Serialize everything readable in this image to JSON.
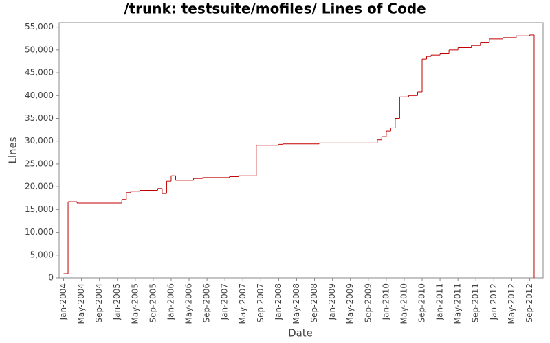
{
  "chart_data": {
    "type": "line",
    "step": true,
    "title": "/trunk: testsuite/mofiles/ Lines of Code",
    "x_label": "Date",
    "y_label": "Lines",
    "color": "#c00000",
    "grid": false,
    "x": [
      "2004-01",
      "2004-02",
      "2004-04",
      "2005-02",
      "2005-03",
      "2005-04",
      "2005-06",
      "2005-10",
      "2005-11",
      "2005-12",
      "2006-01",
      "2006-02",
      "2006-06",
      "2006-08",
      "2007-02",
      "2007-04",
      "2007-08",
      "2008-01",
      "2008-02",
      "2008-10",
      "2009-11",
      "2009-12",
      "2010-01",
      "2010-02",
      "2010-03",
      "2010-04",
      "2010-06",
      "2010-08",
      "2010-09",
      "2010-10",
      "2010-11",
      "2011-01",
      "2011-03",
      "2011-05",
      "2011-08",
      "2011-10",
      "2011-12",
      "2012-03",
      "2012-06",
      "2012-09",
      "2012-10"
    ],
    "values": [
      900,
      16700,
      16400,
      17200,
      18700,
      19000,
      19200,
      19600,
      18500,
      21200,
      22400,
      21400,
      21800,
      22000,
      22200,
      22400,
      29100,
      29300,
      29400,
      29600,
      30300,
      31000,
      32200,
      32900,
      35000,
      39700,
      40000,
      40800,
      48000,
      48600,
      48900,
      49300,
      50000,
      50500,
      51000,
      51700,
      52400,
      52700,
      53100,
      53300,
      0
    ],
    "xlim": [
      "2003-12",
      "2012-12"
    ],
    "xticks": [
      {
        "value": "2004-01",
        "label": "Jan-2004"
      },
      {
        "value": "2004-05",
        "label": "May-2004"
      },
      {
        "value": "2004-09",
        "label": "Sep-2004"
      },
      {
        "value": "2005-01",
        "label": "Jan-2005"
      },
      {
        "value": "2005-05",
        "label": "May-2005"
      },
      {
        "value": "2005-09",
        "label": "Sep-2005"
      },
      {
        "value": "2006-01",
        "label": "Jan-2006"
      },
      {
        "value": "2006-05",
        "label": "May-2006"
      },
      {
        "value": "2006-09",
        "label": "Sep-2006"
      },
      {
        "value": "2007-01",
        "label": "Jan-2007"
      },
      {
        "value": "2007-05",
        "label": "May-2007"
      },
      {
        "value": "2007-09",
        "label": "Sep-2007"
      },
      {
        "value": "2008-01",
        "label": "Jan-2008"
      },
      {
        "value": "2008-05",
        "label": "May-2008"
      },
      {
        "value": "2008-09",
        "label": "Sep-2008"
      },
      {
        "value": "2009-01",
        "label": "Jan-2009"
      },
      {
        "value": "2009-05",
        "label": "May-2009"
      },
      {
        "value": "2009-09",
        "label": "Sep-2009"
      },
      {
        "value": "2010-01",
        "label": "Jan-2010"
      },
      {
        "value": "2010-05",
        "label": "May-2010"
      },
      {
        "value": "2010-09",
        "label": "Sep-2010"
      },
      {
        "value": "2011-01",
        "label": "Jan-2011"
      },
      {
        "value": "2011-05",
        "label": "May-2011"
      },
      {
        "value": "2011-09",
        "label": "Sep-2011"
      },
      {
        "value": "2012-01",
        "label": "Jan-2012"
      },
      {
        "value": "2012-05",
        "label": "May-2012"
      },
      {
        "value": "2012-09",
        "label": "Sep-2012"
      }
    ],
    "ylim": [
      0,
      56000
    ],
    "yticks": [
      0,
      {
        "value": 5000,
        "label": "5,000"
      },
      {
        "value": 10000,
        "label": "10,000"
      },
      {
        "value": 15000,
        "label": "15,000"
      },
      {
        "value": 20000,
        "label": "20,000"
      },
      {
        "value": 25000,
        "label": "25,000"
      },
      {
        "value": 30000,
        "label": "30,000"
      },
      {
        "value": 35000,
        "label": "35,000"
      },
      {
        "value": 40000,
        "label": "40,000"
      },
      {
        "value": 45000,
        "label": "45,000"
      },
      {
        "value": 50000,
        "label": "50,000"
      },
      {
        "value": 55000,
        "label": "55,000"
      }
    ]
  }
}
